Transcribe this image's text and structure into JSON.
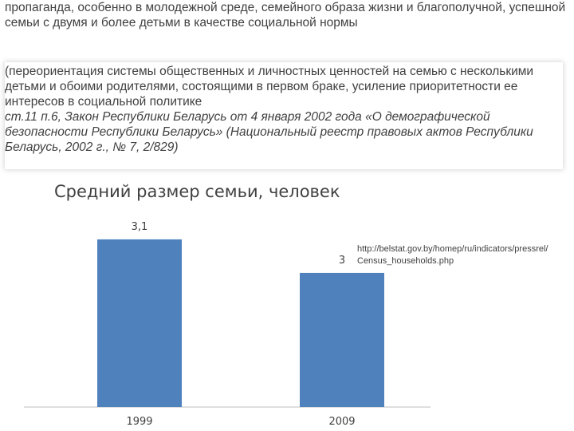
{
  "text": {
    "intro": "пропаганда, особенно в молодежной среде, семейного образа жизни и благополучной, успешной семьи с двумя и более детьми в качестве социальной нормы",
    "quote": "(переориентация системы общественных и личностных ценностей на семью с несколькими детьми и обоими родителями, состоящими в первом браке, усиление приоритетности ее интересов в социальной политике",
    "citation": "ст.11 п.6, Закон Республики Беларусь от 4 января 2002 года «О демографической безопасности Республики Беларусь» (Национальный реестр правовых актов Республики Беларусь, 2002 г., № 7, 2/829)"
  },
  "source": {
    "line1": "http://belstat.gov.by/homep/ru/indicators/pressrel/",
    "line2": "Census_households.php"
  },
  "chart_data": {
    "type": "bar",
    "title": "Средний размер семьи, человек",
    "categories": [
      "1999",
      "2009"
    ],
    "values": [
      3.1,
      3.0
    ],
    "value_labels": [
      "3,1",
      "3"
    ],
    "xlabel": "",
    "ylabel": "",
    "ylim": [
      2.6,
      3.13
    ],
    "grid": false,
    "legend": "none",
    "colors": {
      "bar": "#4f81bd",
      "axis": "#bfbfbf",
      "text": "#404040"
    }
  }
}
